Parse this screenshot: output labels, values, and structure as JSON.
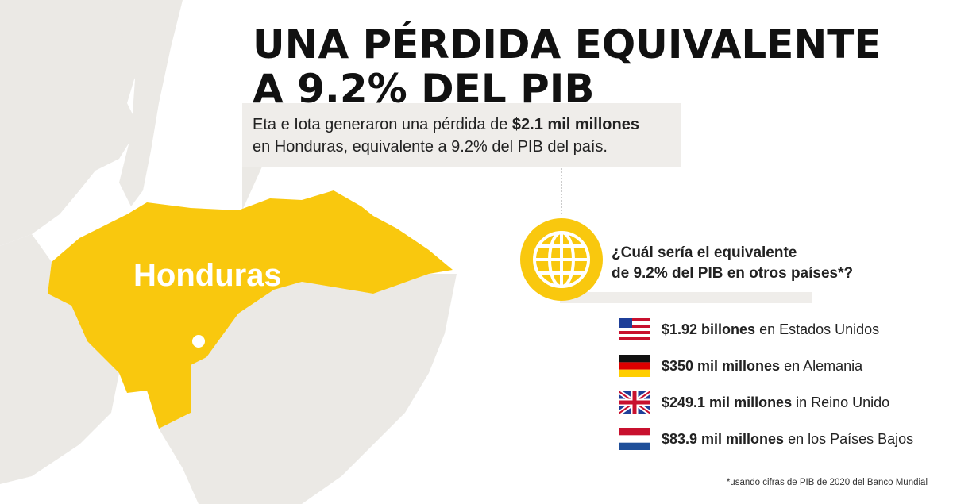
{
  "title": {
    "line1": "UNA PÉRDIDA EQUIVALENTE",
    "line2": "A 9.2% DEL PIB"
  },
  "intro": {
    "before": "Eta e Iota generaron una pérdida de ",
    "highlight": "$2.1 mil millones",
    "after_line2": "en Honduras, equivalente a 9.2% del PIB del país."
  },
  "map": {
    "country_label": "Honduras",
    "highlight_color": "#f9c80e",
    "land_color": "#ebe9e5"
  },
  "question": {
    "line1": "¿Cuál sería el equivalente",
    "line2": "de 9.2% del PIB en otros países*?",
    "icon": "globe-icon"
  },
  "comparisons": [
    {
      "flag": "us-flag-icon",
      "amount": "$1.92 billones",
      "text": "en Estados Unidos"
    },
    {
      "flag": "germany-flag-icon",
      "amount": "$350 mil millones",
      "text": "en Alemania"
    },
    {
      "flag": "uk-flag-icon",
      "amount": "$249.1 mil millones",
      "text": "in Reino Unido"
    },
    {
      "flag": "netherlands-flag-icon",
      "amount": "$83.9 mil millones",
      "text": "en los Países Bajos"
    }
  ],
  "footnote": "*usando cifras de PIB de 2020 del Banco Mundial"
}
